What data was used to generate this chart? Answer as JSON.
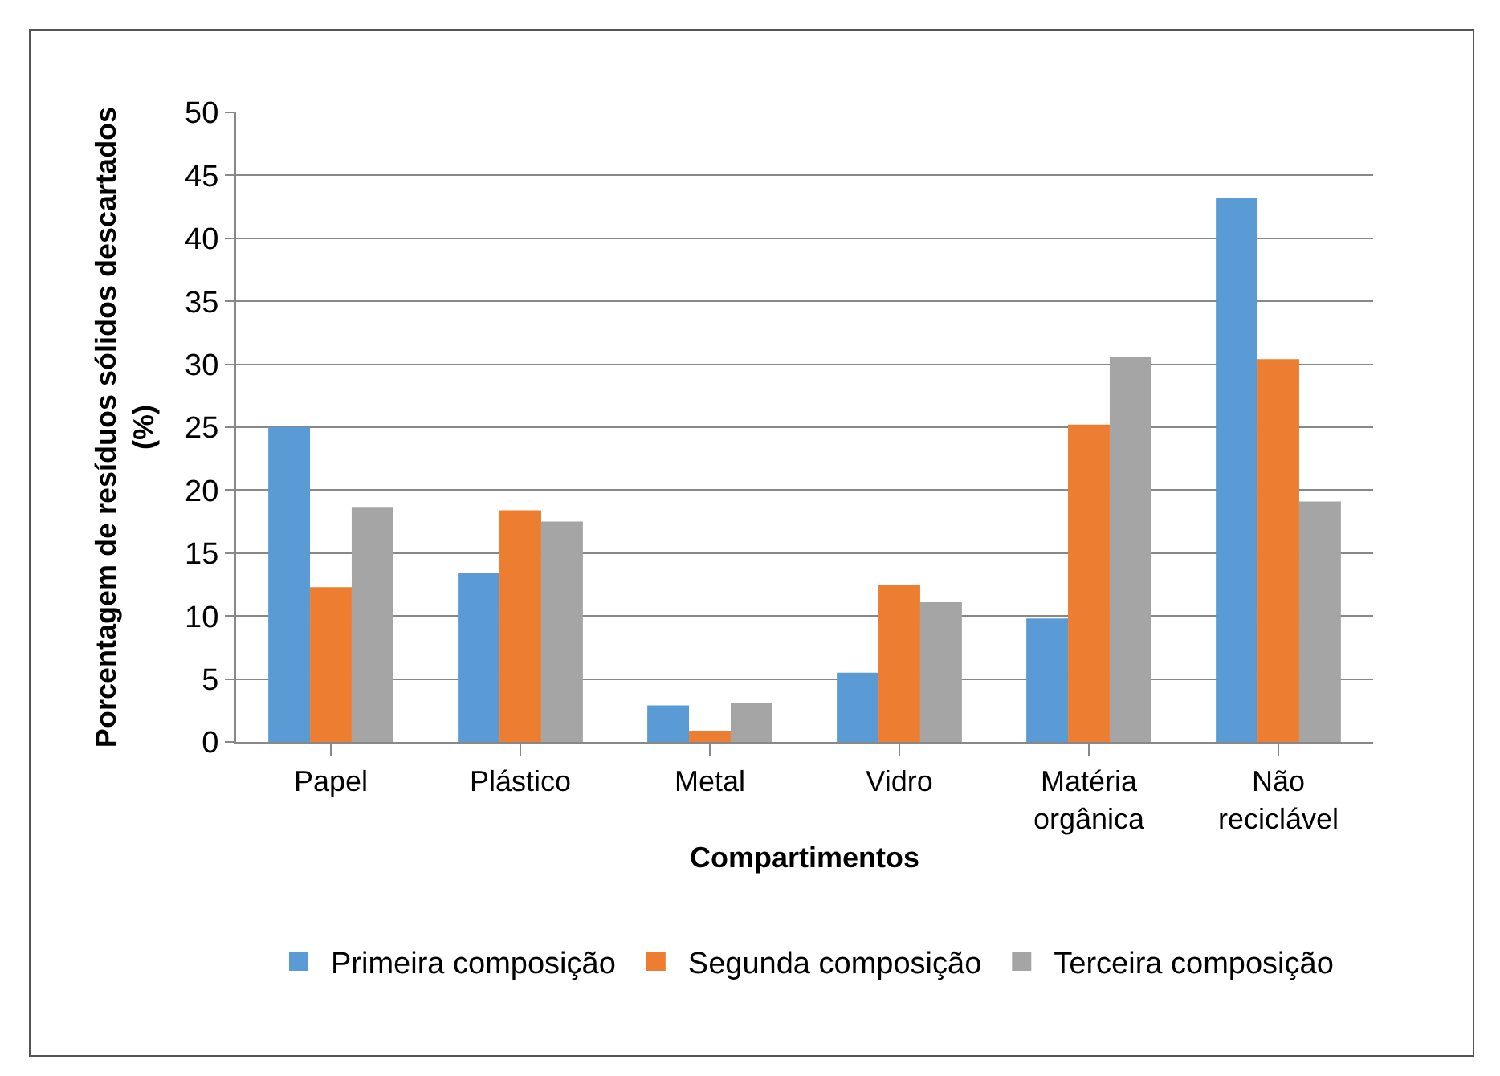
{
  "chart_data": {
    "type": "bar",
    "xlabel": "Compartimentos",
    "ylabel": "Porcentagem de resíduos sólidos descartados (%)",
    "categories": [
      "Papel",
      "Plástico",
      "Metal",
      "Vidro",
      "Matéria orgânica",
      "Não reciclável"
    ],
    "series": [
      {
        "name": "Primeira composição",
        "color": "#5b9bd5",
        "values": [
          25.0,
          13.4,
          2.9,
          5.5,
          9.8,
          43.2
        ]
      },
      {
        "name": "Segunda composição",
        "color": "#ed7d31",
        "values": [
          12.3,
          18.4,
          0.9,
          12.5,
          25.2,
          30.4
        ]
      },
      {
        "name": "Terceira composição",
        "color": "#a5a5a5",
        "values": [
          18.6,
          17.5,
          3.1,
          11.1,
          30.6,
          19.1
        ]
      }
    ],
    "ylim": [
      0,
      50
    ],
    "yticks": [
      0,
      5,
      10,
      15,
      20,
      25,
      30,
      35,
      40,
      45,
      50
    ],
    "grid": "y",
    "legend": "bottom"
  }
}
